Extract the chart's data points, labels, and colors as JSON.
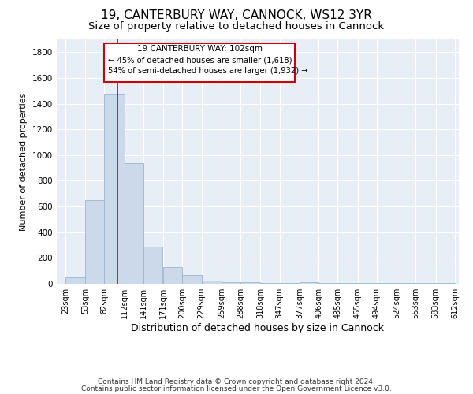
{
  "title": "19, CANTERBURY WAY, CANNOCK, WS12 3YR",
  "subtitle": "Size of property relative to detached houses in Cannock",
  "xlabel": "Distribution of detached houses by size in Cannock",
  "ylabel": "Number of detached properties",
  "footnote1": "Contains HM Land Registry data © Crown copyright and database right 2024.",
  "footnote2": "Contains public sector information licensed under the Open Government Licence v3.0.",
  "bar_left_edges": [
    23,
    53,
    82,
    112,
    141,
    171,
    200,
    229,
    259,
    288,
    318,
    347,
    377,
    406,
    435,
    465,
    494,
    524,
    553,
    583
  ],
  "bar_widths": [
    30,
    29,
    30,
    29,
    29,
    29,
    29,
    30,
    29,
    30,
    29,
    30,
    29,
    29,
    30,
    29,
    30,
    29,
    30,
    29
  ],
  "bar_heights": [
    50,
    650,
    1480,
    940,
    290,
    130,
    65,
    25,
    10,
    10,
    5,
    5,
    10,
    5,
    5,
    5,
    5,
    5,
    5,
    5
  ],
  "tick_labels": [
    "23sqm",
    "53sqm",
    "82sqm",
    "112sqm",
    "141sqm",
    "171sqm",
    "200sqm",
    "229sqm",
    "259sqm",
    "288sqm",
    "318sqm",
    "347sqm",
    "377sqm",
    "406sqm",
    "435sqm",
    "465sqm",
    "494sqm",
    "524sqm",
    "553sqm",
    "583sqm",
    "612sqm"
  ],
  "bar_color": "#ccd9ea",
  "bar_edge_color": "#9ab5d0",
  "vline_x": 102,
  "vline_color": "#cc0000",
  "annotation_text_line1": "19 CANTERBURY WAY: 102sqm",
  "annotation_text_line2": "← 45% of detached houses are smaller (1,618)",
  "annotation_text_line3": "54% of semi-detached houses are larger (1,932) →",
  "annotation_box_color": "#cc0000",
  "ann_x1": 82,
  "ann_x2": 370,
  "ann_y1": 1570,
  "ann_y2": 1870,
  "ylim": [
    0,
    1900
  ],
  "xlim_left": 10,
  "xlim_right": 618,
  "background_color": "#e8eef5",
  "grid_color": "#ffffff",
  "title_fontsize": 11,
  "subtitle_fontsize": 9.5,
  "ylabel_fontsize": 8,
  "xlabel_fontsize": 9,
  "footnote_fontsize": 6.5,
  "tick_fontsize": 7
}
